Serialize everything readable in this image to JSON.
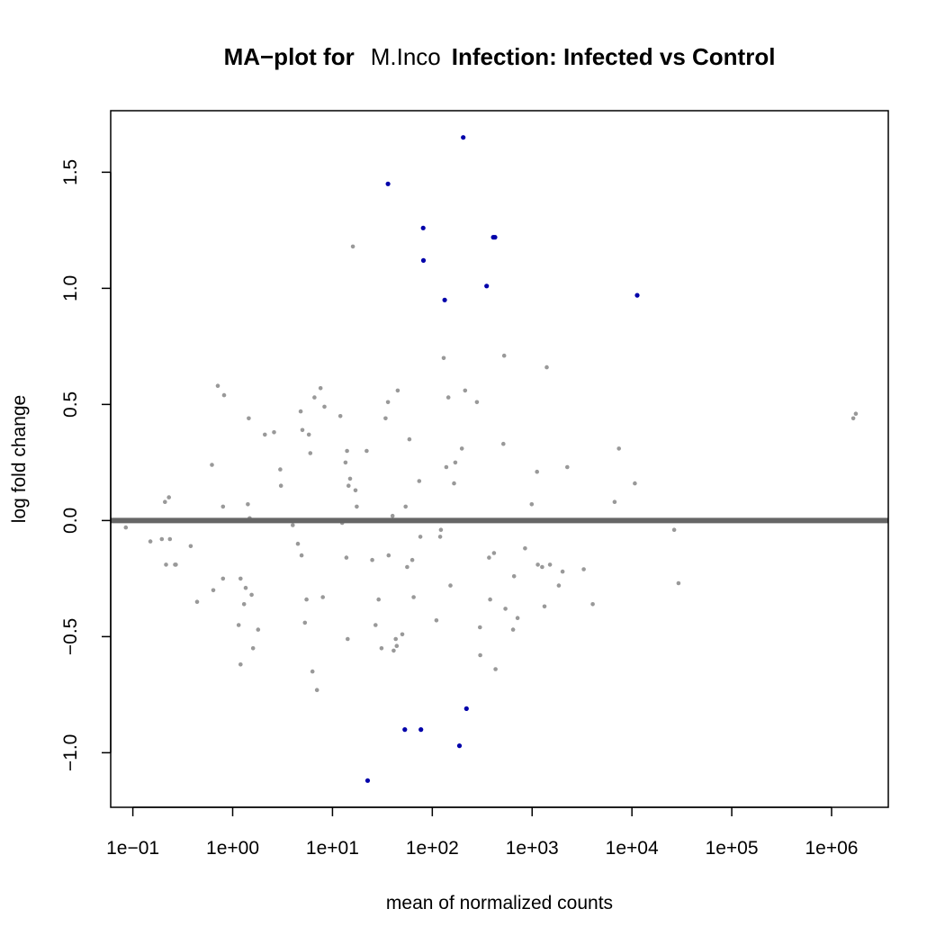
{
  "chart_data": {
    "type": "scatter",
    "title_parts": [
      "MA−plot for",
      "M.Inco",
      "Infection: Infected vs Control"
    ],
    "xlabel": "mean of normalized counts",
    "ylabel": "log fold change",
    "x_scale": "log10",
    "xlim": [
      0.06,
      3700000
    ],
    "ylim": [
      -1.235,
      1.765
    ],
    "x_ticks": [
      0.1,
      1,
      10,
      100,
      1000,
      10000,
      100000,
      1000000
    ],
    "x_tick_labels": [
      "1e−01",
      "1e+00",
      "1e+01",
      "1e+02",
      "1e+03",
      "1e+04",
      "1e+05",
      "1e+06"
    ],
    "y_ticks": [
      -1.0,
      -0.5,
      0.0,
      0.5,
      1.0,
      1.5
    ],
    "y_tick_labels": [
      "−1.0",
      "−0.5",
      "0.0",
      "0.5",
      "1.0",
      "1.5"
    ],
    "reference_line_y": 0,
    "grid": false,
    "legend": "none",
    "colors": {
      "not_significant": "#999999",
      "significant": "#0000aa",
      "reference_line": "#666666"
    },
    "series": [
      {
        "key": "not_significant",
        "points": [
          [
            0.085,
            -0.03
          ],
          [
            0.15,
            -0.09
          ],
          [
            0.195,
            -0.08
          ],
          [
            0.21,
            0.08
          ],
          [
            0.215,
            -0.19
          ],
          [
            0.23,
            0.1
          ],
          [
            0.235,
            -0.08
          ],
          [
            0.265,
            -0.19
          ],
          [
            0.27,
            -0.19
          ],
          [
            0.38,
            -0.11
          ],
          [
            0.44,
            -0.35
          ],
          [
            0.62,
            0.24
          ],
          [
            0.64,
            -0.3
          ],
          [
            0.71,
            0.58
          ],
          [
            0.8,
            -0.25
          ],
          [
            0.8,
            0.06
          ],
          [
            0.82,
            0.54
          ],
          [
            1.15,
            -0.45
          ],
          [
            1.2,
            -0.25
          ],
          [
            1.2,
            -0.62
          ],
          [
            1.3,
            -0.36
          ],
          [
            1.35,
            -0.29
          ],
          [
            1.42,
            0.07
          ],
          [
            1.45,
            0.44
          ],
          [
            1.48,
            0.01
          ],
          [
            1.55,
            -0.32
          ],
          [
            1.6,
            -0.55
          ],
          [
            1.8,
            -0.47
          ],
          [
            2.1,
            0.37
          ],
          [
            2.6,
            0.38
          ],
          [
            3.0,
            0.22
          ],
          [
            3.05,
            0.15
          ],
          [
            4.0,
            -0.02
          ],
          [
            4.5,
            -0.1
          ],
          [
            4.8,
            0.47
          ],
          [
            4.9,
            -0.15
          ],
          [
            5.0,
            0.39
          ],
          [
            5.2,
            0.0
          ],
          [
            5.3,
            -0.44
          ],
          [
            5.5,
            -0.34
          ],
          [
            5.8,
            0.37
          ],
          [
            6.0,
            0.29
          ],
          [
            6.3,
            -0.65
          ],
          [
            6.6,
            0.53
          ],
          [
            7.0,
            -0.73
          ],
          [
            7.6,
            0.57
          ],
          [
            8.0,
            -0.33
          ],
          [
            8.3,
            0.49
          ],
          [
            12.0,
            0.45
          ],
          [
            12.5,
            -0.01
          ],
          [
            13.5,
            0.25
          ],
          [
            13.8,
            -0.16
          ],
          [
            14.0,
            0.3
          ],
          [
            14.2,
            -0.51
          ],
          [
            14.5,
            0.15
          ],
          [
            15.0,
            0.18
          ],
          [
            15.5,
            0.0
          ],
          [
            16.0,
            1.18
          ],
          [
            17.0,
            0.13
          ],
          [
            17.5,
            0.06
          ],
          [
            22.0,
            0.3
          ],
          [
            25.0,
            -0.17
          ],
          [
            27.0,
            -0.45
          ],
          [
            29.0,
            -0.34
          ],
          [
            31.0,
            -0.55
          ],
          [
            34.0,
            0.44
          ],
          [
            36.0,
            0.51
          ],
          [
            36.5,
            -0.15
          ],
          [
            40.0,
            0.02
          ],
          [
            41.0,
            -0.56
          ],
          [
            43.0,
            -0.51
          ],
          [
            44.0,
            -0.54
          ],
          [
            45.0,
            0.56
          ],
          [
            50.0,
            -0.49
          ],
          [
            54.0,
            0.06
          ],
          [
            56.0,
            -0.2
          ],
          [
            59.0,
            0.35
          ],
          [
            63.0,
            -0.17
          ],
          [
            65.0,
            -0.33
          ],
          [
            74.0,
            0.17
          ],
          [
            76.0,
            -0.07
          ],
          [
            110.0,
            -0.43
          ],
          [
            120.0,
            -0.07
          ],
          [
            122.0,
            -0.04
          ],
          [
            130.0,
            0.7
          ],
          [
            138.0,
            0.23
          ],
          [
            145.0,
            0.53
          ],
          [
            152.0,
            -0.28
          ],
          [
            165.0,
            0.16
          ],
          [
            170.0,
            0.25
          ],
          [
            198.0,
            0.31
          ],
          [
            213.0,
            0.56
          ],
          [
            280.0,
            0.51
          ],
          [
            300.0,
            -0.46
          ],
          [
            302.0,
            -0.58
          ],
          [
            370.0,
            -0.16
          ],
          [
            380.0,
            -0.34
          ],
          [
            415.0,
            -0.14
          ],
          [
            430.0,
            -0.64
          ],
          [
            515.0,
            0.33
          ],
          [
            525.0,
            0.71
          ],
          [
            540.0,
            -0.38
          ],
          [
            645.0,
            -0.47
          ],
          [
            660.0,
            -0.24
          ],
          [
            715.0,
            -0.42
          ],
          [
            850.0,
            -0.12
          ],
          [
            990.0,
            0.07
          ],
          [
            1120.0,
            0.21
          ],
          [
            1140.0,
            -0.19
          ],
          [
            1260.0,
            -0.2
          ],
          [
            1330.0,
            -0.37
          ],
          [
            1400.0,
            0.66
          ],
          [
            1510.0,
            -0.19
          ],
          [
            1850.0,
            -0.28
          ],
          [
            2020.0,
            -0.22
          ],
          [
            2250.0,
            0.23
          ],
          [
            3290.0,
            -0.21
          ],
          [
            4050.0,
            -0.36
          ],
          [
            6700.0,
            0.08
          ],
          [
            7400.0,
            0.31
          ],
          [
            10700.0,
            0.16
          ],
          [
            26500.0,
            -0.04
          ],
          [
            29300.0,
            -0.27
          ],
          [
            1650000.0,
            0.44
          ],
          [
            1750000.0,
            0.46
          ]
        ]
      },
      {
        "key": "significant",
        "points": [
          [
            36.0,
            1.45
          ],
          [
            204.0,
            1.65
          ],
          [
            81.0,
            1.26
          ],
          [
            81.5,
            1.12
          ],
          [
            408.0,
            1.22
          ],
          [
            425.0,
            1.22
          ],
          [
            133.0,
            0.95
          ],
          [
            350.0,
            1.01
          ],
          [
            11300.0,
            0.97
          ],
          [
            53.0,
            -0.9
          ],
          [
            77.0,
            -0.9
          ],
          [
            220.0,
            -0.81
          ],
          [
            187.0,
            -0.97
          ],
          [
            22.5,
            -1.12
          ]
        ]
      }
    ]
  }
}
